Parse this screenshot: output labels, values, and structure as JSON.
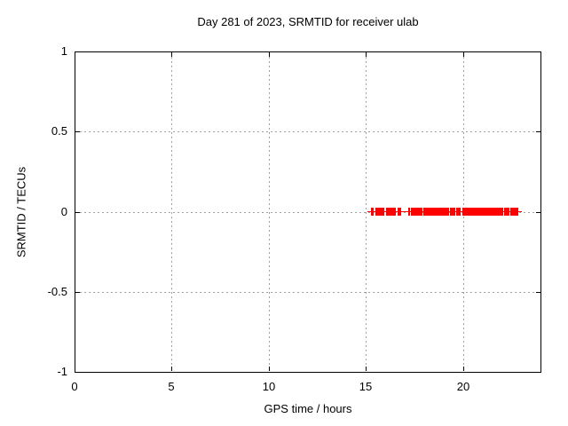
{
  "colors": {
    "background": "#ffffff",
    "border": "#000000",
    "grid": "#a0a0a0",
    "text": "#000000",
    "series": "#ff0000"
  },
  "chart_data": {
    "type": "scatter",
    "title": "Day 281 of 2023, SRMTID for receiver ulab",
    "xlabel": "GPS time / hours",
    "ylabel": "SRMTID / TECUs",
    "xlim": [
      0,
      24
    ],
    "ylim": [
      -1,
      1
    ],
    "grid": true,
    "legend": "none",
    "xticks": {
      "values": [
        0,
        5,
        10,
        15,
        20
      ],
      "labels": [
        "0",
        "5",
        "10",
        "15",
        "20"
      ]
    },
    "yticks": {
      "values": [
        1,
        0.5,
        0,
        -0.5,
        -1
      ],
      "labels": [
        "1",
        "0.5",
        "0",
        "-0.5",
        "-1"
      ]
    },
    "series": [
      {
        "name": "SRMTID",
        "marker": "plus",
        "color": "#ff0000",
        "y": 0,
        "x_segments_hours": [
          [
            15.31,
            15.41
          ],
          [
            15.54,
            15.96
          ],
          [
            16.09,
            16.55
          ],
          [
            16.64,
            16.82
          ],
          [
            17.19,
            17.28
          ],
          [
            17.37,
            17.92
          ],
          [
            18.01,
            19.29
          ],
          [
            19.38,
            19.61
          ],
          [
            19.7,
            19.89
          ],
          [
            19.98,
            22.08
          ],
          [
            22.17,
            22.4
          ],
          [
            22.49,
            22.86
          ]
        ]
      }
    ]
  }
}
